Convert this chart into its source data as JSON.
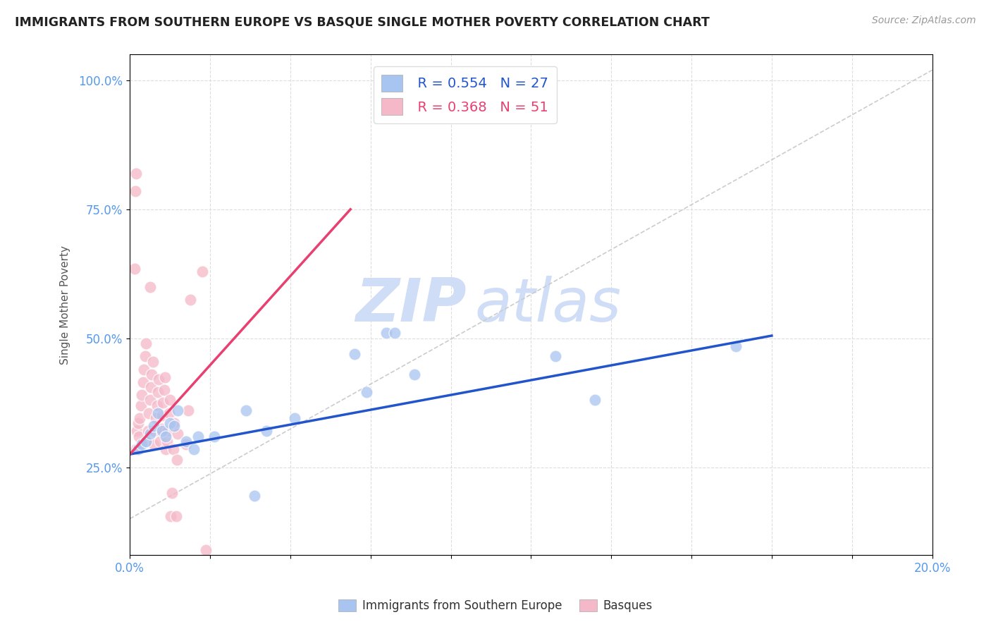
{
  "title": "IMMIGRANTS FROM SOUTHERN EUROPE VS BASQUE SINGLE MOTHER POVERTY CORRELATION CHART",
  "source": "Source: ZipAtlas.com",
  "ylabel": "Single Mother Poverty",
  "legend_label_blue": "Immigrants from Southern Europe",
  "legend_label_pink": "Basques",
  "legend_r_blue": "R = 0.554",
  "legend_n_blue": "N = 27",
  "legend_r_pink": "R = 0.368",
  "legend_n_pink": "N = 51",
  "blue_color": "#a8c4f0",
  "pink_color": "#f5b8c8",
  "blue_line_color": "#2255cc",
  "pink_line_color": "#e84070",
  "diagonal_color": "#cccccc",
  "watermark_color": "#d0ddf7",
  "title_color": "#222222",
  "source_color": "#999999",
  "axis_label_color": "#5599ee",
  "blue_scatter": [
    [
      0.2,
      28.5
    ],
    [
      0.3,
      29.5
    ],
    [
      0.4,
      30.0
    ],
    [
      0.5,
      31.5
    ],
    [
      0.6,
      33.0
    ],
    [
      0.7,
      35.5
    ],
    [
      0.8,
      32.0
    ],
    [
      0.9,
      31.0
    ],
    [
      1.0,
      33.5
    ],
    [
      1.1,
      33.0
    ],
    [
      1.2,
      36.0
    ],
    [
      1.4,
      30.0
    ],
    [
      1.6,
      28.5
    ],
    [
      1.7,
      31.0
    ],
    [
      2.1,
      31.0
    ],
    [
      2.9,
      36.0
    ],
    [
      3.1,
      19.5
    ],
    [
      3.4,
      32.0
    ],
    [
      4.1,
      34.5
    ],
    [
      5.6,
      47.0
    ],
    [
      5.9,
      39.5
    ],
    [
      6.4,
      51.0
    ],
    [
      6.6,
      51.0
    ],
    [
      7.1,
      43.0
    ],
    [
      10.6,
      46.5
    ],
    [
      11.6,
      38.0
    ],
    [
      15.1,
      48.5
    ]
  ],
  "pink_scatter": [
    [
      0.15,
      28.5
    ],
    [
      0.18,
      32.0
    ],
    [
      0.2,
      33.5
    ],
    [
      0.22,
      31.0
    ],
    [
      0.25,
      34.5
    ],
    [
      0.28,
      37.0
    ],
    [
      0.3,
      39.0
    ],
    [
      0.33,
      41.5
    ],
    [
      0.35,
      44.0
    ],
    [
      0.38,
      46.5
    ],
    [
      0.4,
      49.0
    ],
    [
      0.42,
      30.0
    ],
    [
      0.45,
      32.0
    ],
    [
      0.48,
      35.5
    ],
    [
      0.5,
      38.0
    ],
    [
      0.52,
      40.5
    ],
    [
      0.55,
      43.0
    ],
    [
      0.58,
      45.5
    ],
    [
      0.6,
      29.5
    ],
    [
      0.62,
      32.0
    ],
    [
      0.65,
      34.5
    ],
    [
      0.68,
      37.0
    ],
    [
      0.7,
      39.5
    ],
    [
      0.72,
      42.0
    ],
    [
      0.75,
      30.0
    ],
    [
      0.78,
      32.5
    ],
    [
      0.8,
      35.0
    ],
    [
      0.82,
      37.5
    ],
    [
      0.85,
      40.0
    ],
    [
      0.88,
      42.5
    ],
    [
      0.9,
      28.5
    ],
    [
      0.92,
      30.0
    ],
    [
      0.95,
      32.0
    ],
    [
      0.98,
      35.5
    ],
    [
      1.0,
      38.0
    ],
    [
      1.02,
      15.5
    ],
    [
      1.05,
      20.0
    ],
    [
      1.08,
      28.5
    ],
    [
      1.1,
      33.5
    ],
    [
      1.15,
      15.5
    ],
    [
      1.18,
      26.5
    ],
    [
      1.2,
      31.5
    ],
    [
      1.4,
      29.5
    ],
    [
      1.45,
      36.0
    ],
    [
      1.5,
      57.5
    ],
    [
      1.8,
      63.0
    ],
    [
      0.12,
      63.5
    ],
    [
      0.14,
      78.5
    ],
    [
      0.16,
      82.0
    ],
    [
      0.5,
      60.0
    ],
    [
      1.9,
      9.0
    ]
  ],
  "blue_trendline_pct": [
    [
      0.0,
      27.5
    ],
    [
      16.0,
      50.5
    ]
  ],
  "pink_trendline_pct": [
    [
      0.0,
      27.5
    ],
    [
      5.5,
      75.0
    ]
  ],
  "diagonal_line_pct": [
    [
      0.0,
      15.0
    ],
    [
      20.0,
      102.0
    ]
  ],
  "xlim_pct": [
    0.0,
    20.0
  ],
  "ylim_pct": [
    8.0,
    105.0
  ],
  "xticks_pct": [
    0.0,
    2.0,
    4.0,
    6.0,
    8.0,
    10.0,
    12.0,
    14.0,
    16.0,
    18.0,
    20.0
  ],
  "yticks_pct": [
    25.0,
    50.0,
    75.0,
    100.0
  ],
  "ytick_labels": [
    "25.0%",
    "50.0%",
    "75.0%",
    "100.0%"
  ]
}
